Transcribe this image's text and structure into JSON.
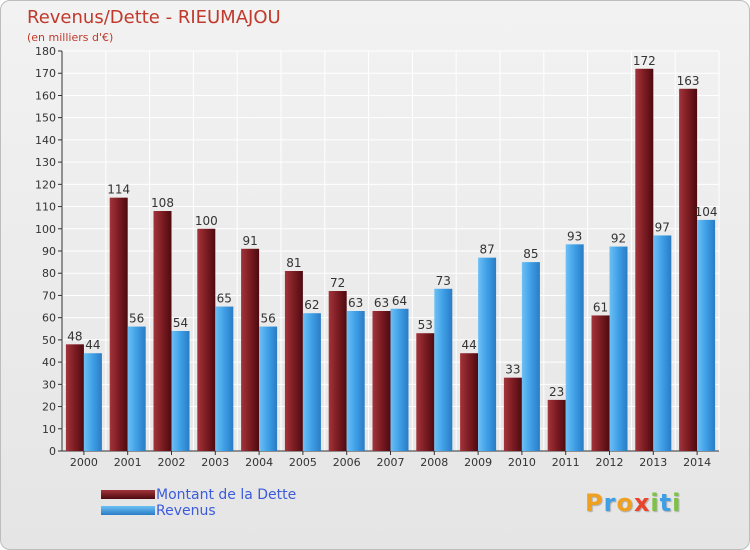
{
  "title": "Revenus/Dette - RIEUMAJOU",
  "subtitle": "(en milliers d'€)",
  "colors": {
    "dette": "#7b1c22",
    "revenus": "#3e9fe6",
    "title": "#c0392b",
    "legend_text": "#3b5bdb"
  },
  "legend": {
    "dette_label": "Montant de la Dette",
    "revenus_label": "Revenus"
  },
  "brand": {
    "text": "Proxiti",
    "letters": [
      "P",
      "r",
      "o",
      "x",
      "i",
      "t",
      "i"
    ]
  },
  "chart_data": {
    "type": "bar",
    "title": "Revenus/Dette - RIEUMAJOU",
    "subtitle": "(en milliers d'€)",
    "categories": [
      "2000",
      "2001",
      "2002",
      "2003",
      "2004",
      "2005",
      "2006",
      "2007",
      "2008",
      "2009",
      "2010",
      "2011",
      "2012",
      "2013",
      "2014"
    ],
    "series": [
      {
        "name": "Montant de la Dette",
        "color": "#7b1c22",
        "values": [
          48,
          114,
          108,
          100,
          91,
          81,
          72,
          63,
          53,
          44,
          33,
          23,
          61,
          172,
          163
        ]
      },
      {
        "name": "Revenus",
        "color": "#3e9fe6",
        "values": [
          44,
          56,
          54,
          65,
          56,
          62,
          63,
          64,
          73,
          87,
          85,
          93,
          92,
          97,
          104
        ]
      }
    ],
    "ylim": [
      0,
      180
    ],
    "yticks": [
      0,
      10,
      20,
      30,
      40,
      50,
      60,
      70,
      80,
      90,
      100,
      110,
      120,
      130,
      140,
      150,
      160,
      170,
      180
    ],
    "grid": true,
    "legend_position": "bottom-left"
  }
}
